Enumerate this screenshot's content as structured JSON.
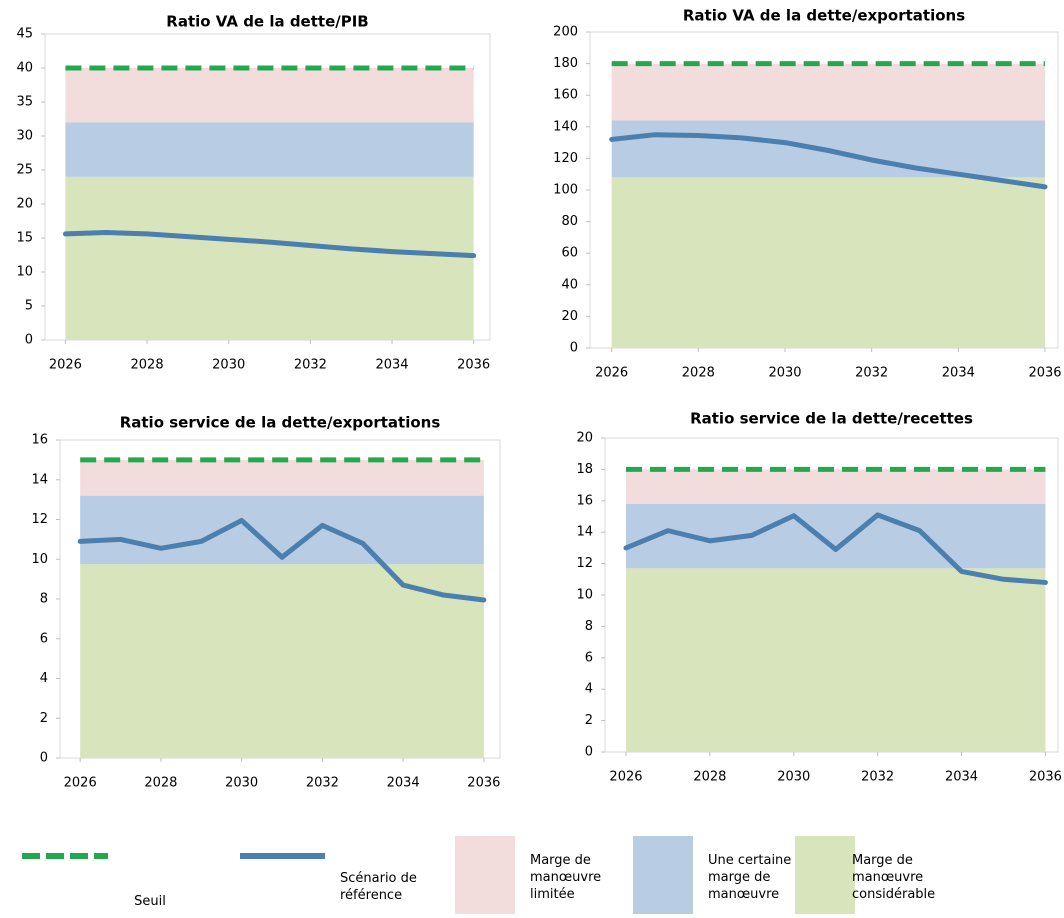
{
  "chart_data": [
    {
      "type": "line",
      "title": "Ratio VA de la dette/PIB",
      "x": [
        2026,
        2027,
        2028,
        2029,
        2030,
        2031,
        2032,
        2033,
        2034,
        2035,
        2036
      ],
      "values": [
        15.6,
        15.8,
        15.6,
        15.2,
        14.8,
        14.4,
        13.9,
        13.4,
        13.0,
        12.7,
        12.4
      ],
      "threshold": 40,
      "bands": [
        24,
        8,
        8
      ],
      "xlim": [
        2025.5,
        2036.4
      ],
      "xticks": [
        2026,
        2028,
        2030,
        2032,
        2034,
        2036
      ],
      "ylim": [
        0,
        45
      ],
      "yticks": [
        0,
        5,
        10,
        15,
        20,
        25,
        30,
        35,
        40,
        45
      ]
    },
    {
      "type": "line",
      "title": "Ratio VA de la dette/exportations",
      "x": [
        2026,
        2027,
        2028,
        2029,
        2030,
        2031,
        2032,
        2033,
        2034,
        2035,
        2036
      ],
      "values": [
        132,
        135,
        134.5,
        133,
        130,
        125,
        119,
        114,
        110,
        106,
        102
      ],
      "threshold": 180,
      "bands": [
        108,
        36,
        36
      ],
      "xlim": [
        2025.5,
        2036.3
      ],
      "xticks": [
        2026,
        2028,
        2030,
        2032,
        2034,
        2036
      ],
      "ylim": [
        0,
        200
      ],
      "yticks": [
        0,
        20,
        40,
        60,
        80,
        100,
        120,
        140,
        160,
        180,
        200
      ]
    },
    {
      "type": "line",
      "title": "Ratio service de la dette/exportations",
      "x": [
        2026,
        2027,
        2028,
        2029,
        2030,
        2031,
        2032,
        2033,
        2034,
        2035,
        2036
      ],
      "values": [
        10.9,
        11.0,
        10.55,
        10.9,
        11.95,
        10.1,
        11.7,
        10.8,
        8.7,
        8.2,
        7.95
      ],
      "threshold": 15,
      "bands": [
        9.75,
        3.45,
        1.8
      ],
      "xlim": [
        2025.5,
        2036.4
      ],
      "xticks": [
        2026,
        2028,
        2030,
        2032,
        2034,
        2036
      ],
      "ylim": [
        0,
        16
      ],
      "yticks": [
        0,
        2,
        4,
        6,
        8,
        10,
        12,
        14,
        16
      ]
    },
    {
      "type": "line",
      "title": "Ratio service de la dette/recettes",
      "x": [
        2026,
        2027,
        2028,
        2029,
        2030,
        2031,
        2032,
        2033,
        2034,
        2035,
        2036
      ],
      "values": [
        13.0,
        14.1,
        13.45,
        13.8,
        15.05,
        12.9,
        15.1,
        14.1,
        11.5,
        11.0,
        10.8
      ],
      "threshold": 18,
      "bands": [
        11.7,
        4.1,
        2.2
      ],
      "xlim": [
        2025.5,
        2036.3
      ],
      "xticks": [
        2026,
        2028,
        2030,
        2032,
        2034,
        2036
      ],
      "ylim": [
        0,
        20
      ],
      "yticks": [
        0,
        2,
        4,
        6,
        8,
        10,
        12,
        14,
        16,
        18,
        20
      ]
    }
  ],
  "legend": [
    {
      "label": "Seuil",
      "color": "#22a94f"
    },
    {
      "label": "Scénario de référence",
      "color": "#4b7fae"
    },
    {
      "label": "Marge de manœuvre limitée",
      "color": "#f2dcdc"
    },
    {
      "label": "Une certaine marge de manœuvre",
      "color": "#b8cce4"
    },
    {
      "label": "Marge de manœuvre considérable",
      "color": "#d8e4bc"
    }
  ]
}
